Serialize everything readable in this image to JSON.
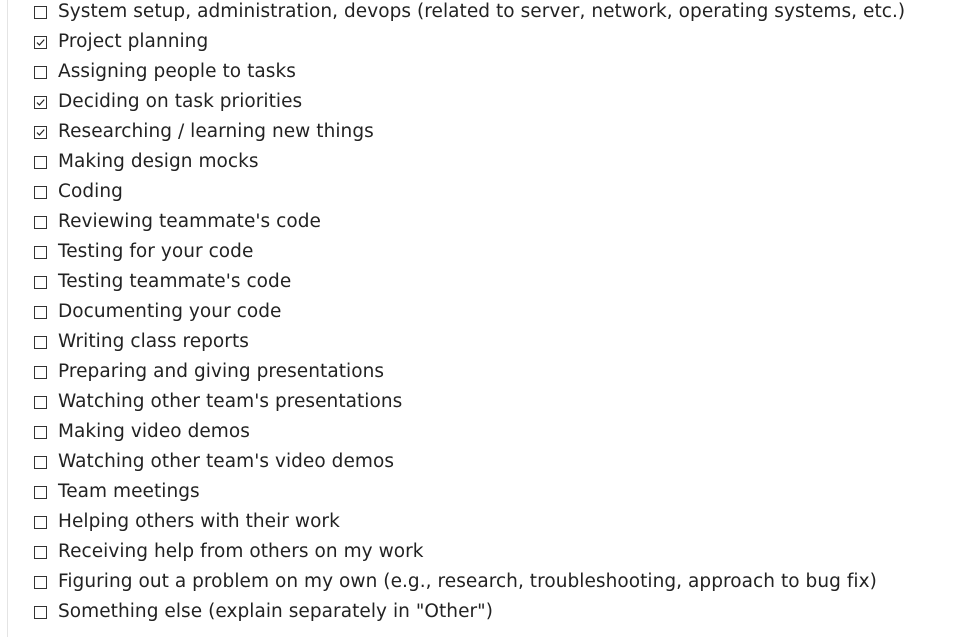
{
  "checklist": {
    "items": [
      {
        "label": "System setup, administration, devops (related to server, network, operating systems, etc.)",
        "checked": false
      },
      {
        "label": "Project planning",
        "checked": true
      },
      {
        "label": "Assigning people to tasks",
        "checked": false
      },
      {
        "label": "Deciding on task priorities",
        "checked": true
      },
      {
        "label": "Researching / learning new things",
        "checked": true
      },
      {
        "label": "Making design mocks",
        "checked": false
      },
      {
        "label": "Coding",
        "checked": false
      },
      {
        "label": "Reviewing teammate's code",
        "checked": false
      },
      {
        "label": "Testing for your code",
        "checked": false
      },
      {
        "label": "Testing teammate's code",
        "checked": false
      },
      {
        "label": "Documenting your code",
        "checked": false
      },
      {
        "label": "Writing class reports",
        "checked": false
      },
      {
        "label": "Preparing and giving presentations",
        "checked": false
      },
      {
        "label": "Watching other team's presentations",
        "checked": false
      },
      {
        "label": "Making video demos",
        "checked": false
      },
      {
        "label": "Watching other team's video demos",
        "checked": false
      },
      {
        "label": "Team meetings",
        "checked": false
      },
      {
        "label": "Helping others with their work",
        "checked": false
      },
      {
        "label": "Receiving help from others on my work",
        "checked": false
      },
      {
        "label": "Figuring out a problem on my own (e.g., research, troubleshooting, approach to bug fix)",
        "checked": false
      },
      {
        "label": "Something else (explain separately in \"Other\")",
        "checked": false
      }
    ]
  }
}
